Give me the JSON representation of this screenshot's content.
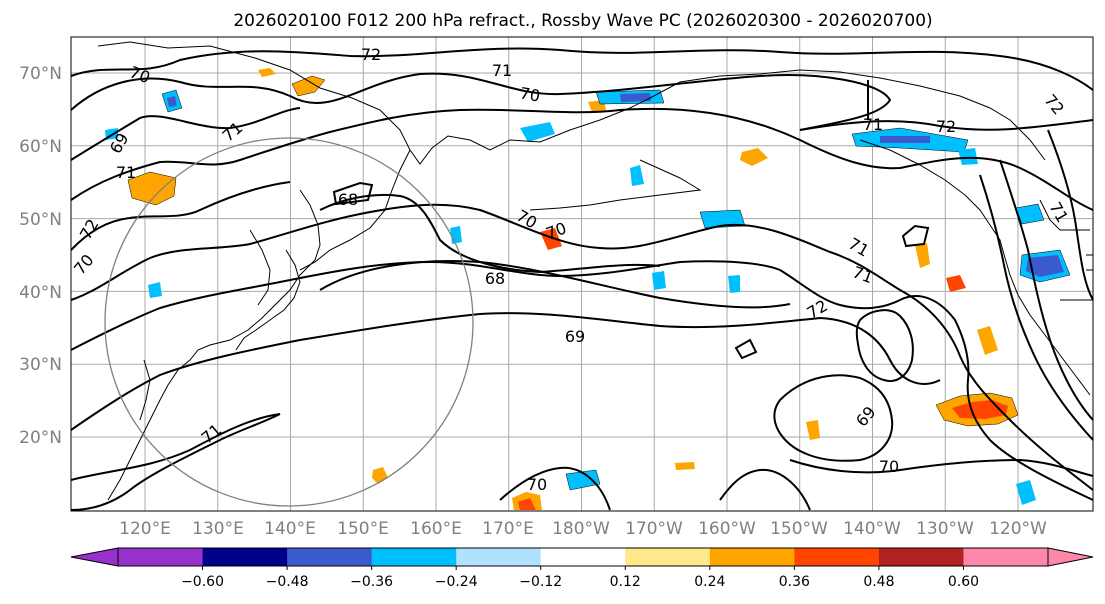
{
  "title": "2026020100 F012 200 hPa refract., Rossby Wave PC (2026020300 - 2026020700)",
  "lat_labels": [
    "70°N",
    "60°N",
    "50°N",
    "40°N",
    "30°N",
    "20°N"
  ],
  "lon_labels": [
    "120°E",
    "130°E",
    "140°E",
    "150°E",
    "160°E",
    "170°E",
    "180°W",
    "170°W",
    "160°W",
    "150°W",
    "140°W",
    "130°W",
    "120°W"
  ],
  "colorbar": {
    "colors": [
      "#9932cc",
      "#00008b",
      "#3a5bcd",
      "#00bfff",
      "#b0e2ff",
      "#ffffff",
      "#ffe98a",
      "#ffa500",
      "#ff4500",
      "#b22222",
      "#ff88aa"
    ],
    "labels": [
      "−0.60",
      "−0.48",
      "−0.36",
      "−0.24",
      "−0.12",
      "0.12",
      "0.24",
      "0.36",
      "0.48",
      "0.60"
    ],
    "extend_low_color": "#9932cc",
    "extend_high_color": "#ff88aa"
  },
  "contour_labels": [
    "72",
    "70",
    "71",
    "70",
    "69",
    "71",
    "68",
    "71",
    "72",
    "70",
    "70",
    "70",
    "68",
    "69",
    "71",
    "72",
    "72",
    "69",
    "70",
    "71",
    "70",
    "71",
    "72",
    "71",
    "71"
  ]
}
